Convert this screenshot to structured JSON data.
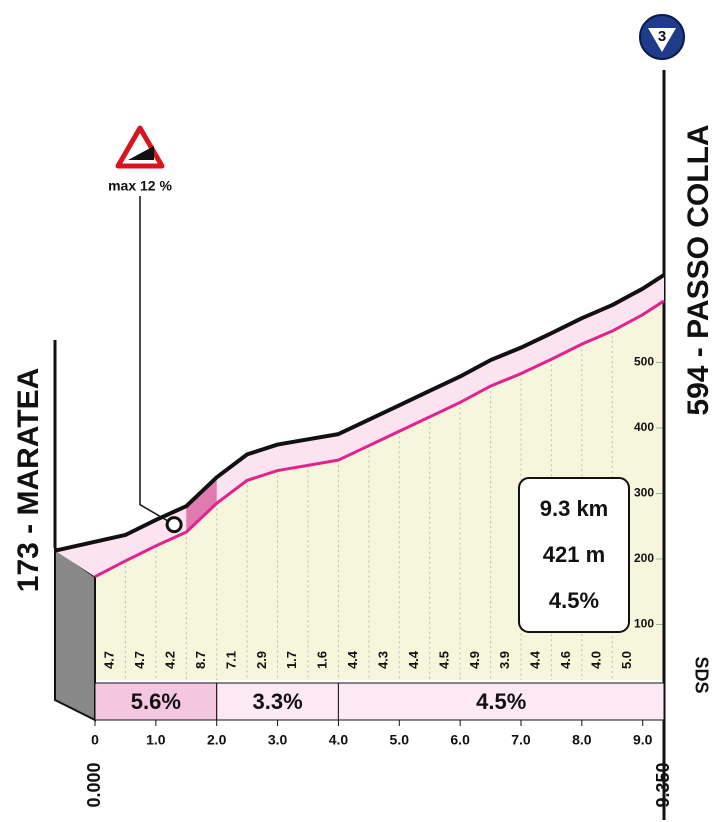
{
  "chart_data": {
    "type": "profile",
    "climb_number": "3",
    "start_label": "173 - MARATEA",
    "end_label": "594 - PASSO COLLA",
    "start_distance": "0.000",
    "end_distance": "9.350",
    "logo": "SDS",
    "max_gradient": {
      "label": "max 12 %",
      "x": 1.3
    },
    "summary": [
      "9.3 km",
      "421 m",
      "4.5%"
    ],
    "x": [
      0,
      0.5,
      1,
      1.5,
      2,
      2.5,
      3,
      3.5,
      4,
      4.5,
      5,
      5.5,
      6,
      6.5,
      7,
      7.5,
      8,
      8.5,
      9,
      9.35
    ],
    "elevations": [
      173,
      197,
      220,
      241,
      285,
      320,
      335,
      343,
      351,
      373,
      395,
      417,
      439,
      464,
      483,
      505,
      528,
      548,
      573,
      594
    ],
    "segments": {
      "values": [
        4.7,
        4.7,
        4.2,
        8.7,
        7.1,
        2.9,
        1.7,
        1.6,
        4.4,
        4.3,
        4.4,
        4.5,
        4.9,
        3.9,
        4.4,
        4.6,
        4,
        5
      ],
      "value_labels": [
        "4.7",
        "4.7",
        "4.2",
        "8.7",
        "7.1",
        "2.9",
        "1.7",
        "1.6",
        "4.4",
        "4.3",
        "4.4",
        "4.5",
        "4.9",
        "3.9",
        "4.4",
        "4.6",
        "4.0",
        "5.0"
      ]
    },
    "sectors": {
      "x_ranges": [
        [
          0,
          2
        ],
        [
          2,
          4
        ],
        [
          4,
          9.35
        ]
      ],
      "values": [
        5.6,
        3.3,
        4.5
      ],
      "value_labels": [
        "5.6%",
        "3.3%",
        "4.5%"
      ]
    },
    "xlim": [
      0,
      9.35
    ],
    "xticks": [
      0,
      {
        "value": 1,
        "label": "1.0"
      },
      {
        "value": 2,
        "label": "2.0"
      },
      {
        "value": 3,
        "label": "3.0"
      },
      {
        "value": 4,
        "label": "4.0"
      },
      {
        "value": 5,
        "label": "5.0"
      },
      {
        "value": 6,
        "label": "6.0"
      },
      {
        "value": 7,
        "label": "7.0"
      },
      {
        "value": 8,
        "label": "8.0"
      },
      {
        "value": 9,
        "label": "9.0"
      }
    ],
    "ylim": [
      0,
      1050
    ],
    "yticks": [
      100,
      200,
      300,
      400,
      500
    ]
  }
}
